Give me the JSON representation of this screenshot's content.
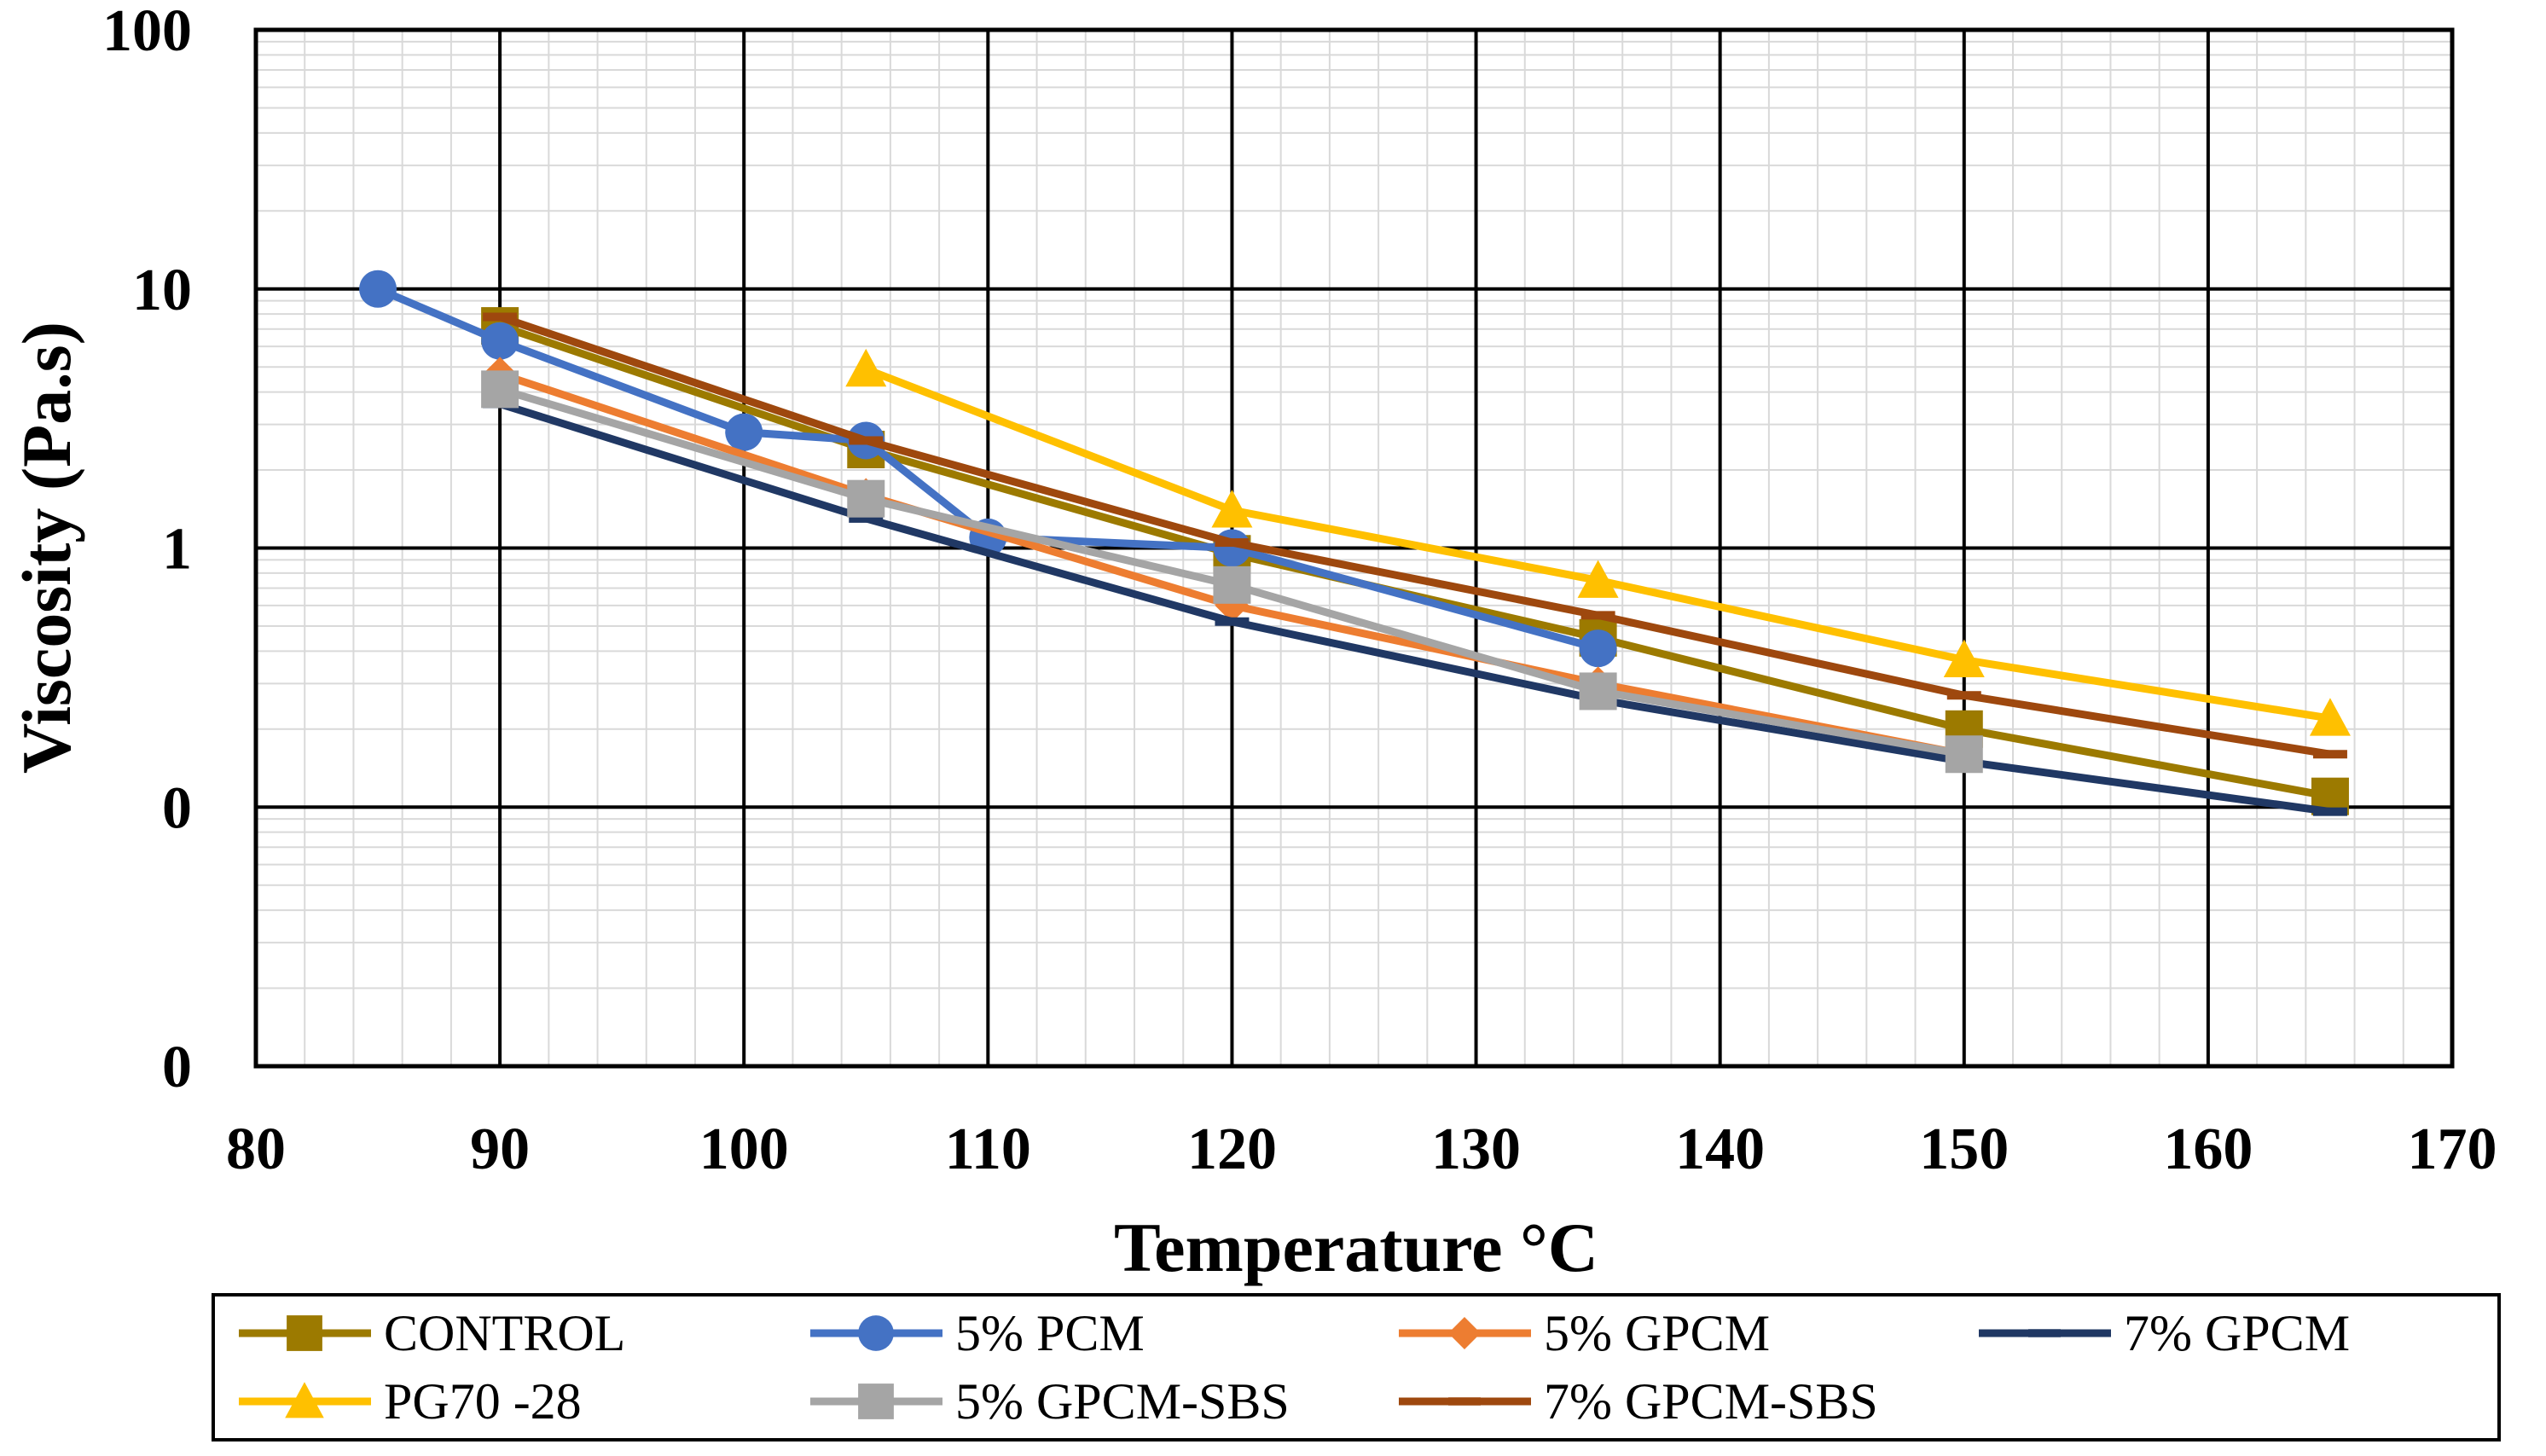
{
  "chart_data": {
    "type": "line",
    "title": "",
    "xlabel": "Temperature °C",
    "ylabel": "Viscosity (Pa.s)",
    "xlim": [
      80,
      170
    ],
    "x_ticks": [
      80,
      90,
      100,
      110,
      120,
      130,
      140,
      150,
      160,
      170
    ],
    "y_scale": "log",
    "ylim": [
      0.01,
      100
    ],
    "y_ticks": [
      {
        "value": 100,
        "label": "100"
      },
      {
        "value": 10,
        "label": "10"
      },
      {
        "value": 1,
        "label": "1"
      },
      {
        "value": 0.1,
        "label": "0"
      },
      {
        "value": 0.01,
        "label": "0"
      }
    ],
    "grid": true,
    "legend_position": "bottom",
    "series": [
      {
        "name": "CONTROL",
        "color": "#9C7A00",
        "marker": "square",
        "points": [
          [
            90,
            7.2
          ],
          [
            105,
            2.4
          ],
          [
            120,
            0.95
          ],
          [
            135,
            0.45
          ],
          [
            150,
            0.2
          ],
          [
            165,
            0.11
          ]
        ]
      },
      {
        "name": "5% PCM",
        "color": "#4472C4",
        "marker": "circle",
        "points": [
          [
            85,
            10.0
          ],
          [
            90,
            6.3
          ],
          [
            100,
            2.8
          ],
          [
            105,
            2.6
          ],
          [
            110,
            1.1
          ],
          [
            120,
            1.0
          ],
          [
            135,
            0.41
          ]
        ]
      },
      {
        "name": "5% GPCM",
        "color": "#ED7D31",
        "marker": "diamond",
        "points": [
          [
            90,
            4.7
          ],
          [
            105,
            1.6
          ],
          [
            120,
            0.6
          ],
          [
            135,
            0.3
          ],
          [
            150,
            0.16
          ]
        ]
      },
      {
        "name": "7% GPCM",
        "color": "#203864",
        "marker": "dash",
        "points": [
          [
            90,
            3.6
          ],
          [
            105,
            1.3
          ],
          [
            120,
            0.52
          ],
          [
            135,
            0.26
          ],
          [
            150,
            0.15
          ],
          [
            165,
            0.096
          ]
        ]
      },
      {
        "name": "PG70 -28",
        "color": "#FFC000",
        "marker": "triangle",
        "points": [
          [
            105,
            4.9
          ],
          [
            120,
            1.4
          ],
          [
            135,
            0.75
          ],
          [
            150,
            0.37
          ],
          [
            165,
            0.22
          ]
        ]
      },
      {
        "name": "5% GPCM-SBS",
        "color": "#A5A5A5",
        "marker": "square",
        "points": [
          [
            90,
            4.1
          ],
          [
            105,
            1.55
          ],
          [
            120,
            0.72
          ],
          [
            135,
            0.28
          ],
          [
            150,
            0.16
          ]
        ]
      },
      {
        "name": "7% GPCM-SBS",
        "color": "#9E480E",
        "marker": "dash",
        "points": [
          [
            90,
            7.8
          ],
          [
            105,
            2.6
          ],
          [
            120,
            1.05
          ],
          [
            135,
            0.55
          ],
          [
            150,
            0.27
          ],
          [
            165,
            0.16
          ]
        ]
      }
    ]
  }
}
